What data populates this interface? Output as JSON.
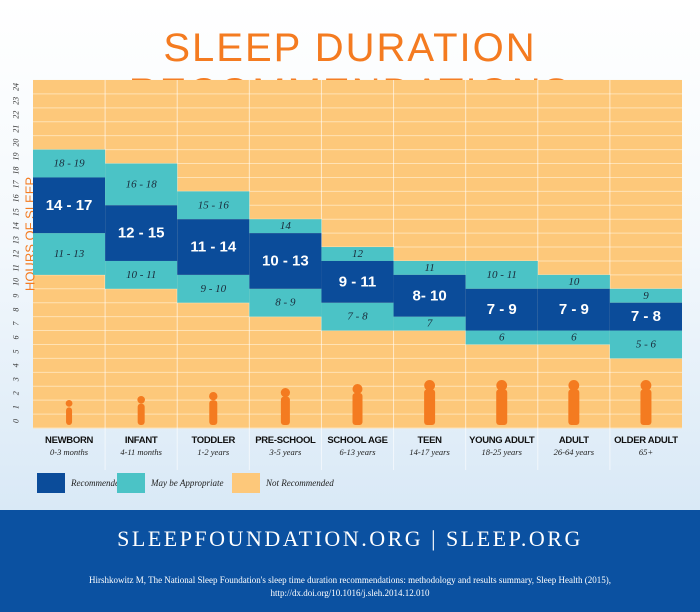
{
  "title": "SLEEP DURATION RECOMMENDATIONS",
  "chart_data": {
    "type": "bar",
    "ylabel": "HOURS OF SLEEP",
    "ylim": [
      0,
      24
    ],
    "yticks": [
      0,
      1,
      2,
      3,
      4,
      5,
      6,
      7,
      8,
      9,
      10,
      11,
      12,
      13,
      14,
      15,
      16,
      17,
      18,
      19,
      20,
      21,
      22,
      23,
      24
    ],
    "background_category": "Not Recommended",
    "categories": [
      {
        "name": "NEWBORN",
        "age": "0-3 months",
        "recommended": [
          14,
          17
        ],
        "rec_label": "14 - 17",
        "appropriate": [
          {
            "range": [
              11,
              13
            ],
            "label": "11 - 13"
          },
          {
            "range": [
              18,
              19
            ],
            "label": "18 - 19"
          }
        ]
      },
      {
        "name": "INFANT",
        "age": "4-11 months",
        "recommended": [
          12,
          15
        ],
        "rec_label": "12 - 15",
        "appropriate": [
          {
            "range": [
              10,
              11
            ],
            "label": "10 - 11"
          },
          {
            "range": [
              16,
              18
            ],
            "label": "16 - 18"
          }
        ]
      },
      {
        "name": "TODDLER",
        "age": "1-2 years",
        "recommended": [
          11,
          14
        ],
        "rec_label": "11 - 14",
        "appropriate": [
          {
            "range": [
              9,
              10
            ],
            "label": "9 - 10"
          },
          {
            "range": [
              15,
              16
            ],
            "label": "15 - 16"
          }
        ]
      },
      {
        "name": "PRE-SCHOOL",
        "age": "3-5 years",
        "recommended": [
          10,
          13
        ],
        "rec_label": "10 - 13",
        "appropriate": [
          {
            "range": [
              8,
              9
            ],
            "label": "8 - 9"
          },
          {
            "range": [
              14,
              14
            ],
            "label": "14"
          }
        ]
      },
      {
        "name": "SCHOOL AGE",
        "age": "6-13 years",
        "recommended": [
          9,
          11
        ],
        "rec_label": "9 - 11",
        "appropriate": [
          {
            "range": [
              7,
              8
            ],
            "label": "7 - 8"
          },
          {
            "range": [
              12,
              12
            ],
            "label": "12"
          }
        ]
      },
      {
        "name": "TEEN",
        "age": "14-17 years",
        "recommended": [
          8,
          10
        ],
        "rec_label": "8- 10",
        "appropriate": [
          {
            "range": [
              7,
              7
            ],
            "label": "7"
          },
          {
            "range": [
              11,
              11
            ],
            "label": "11"
          }
        ]
      },
      {
        "name": "YOUNG ADULT",
        "age": "18-25 years",
        "recommended": [
          7,
          9
        ],
        "rec_label": "7 - 9",
        "appropriate": [
          {
            "range": [
              6,
              6
            ],
            "label": "6"
          },
          {
            "range": [
              10,
              11
            ],
            "label": "10 - 11"
          }
        ]
      },
      {
        "name": "ADULT",
        "age": "26-64 years",
        "recommended": [
          7,
          9
        ],
        "rec_label": "7 - 9",
        "appropriate": [
          {
            "range": [
              6,
              6
            ],
            "label": "6"
          },
          {
            "range": [
              10,
              10
            ],
            "label": "10"
          }
        ]
      },
      {
        "name": "OLDER ADULT",
        "age": "65+",
        "recommended": [
          7,
          8
        ],
        "rec_label": "7 - 8",
        "appropriate": [
          {
            "range": [
              5,
              6
            ],
            "label": "5 - 6"
          },
          {
            "range": [
              9,
              9
            ],
            "label": "9"
          }
        ]
      }
    ],
    "legend": [
      {
        "label": "Recommended",
        "color": "#0B4C9A"
      },
      {
        "label": "May be Appropriate",
        "color": "#4BC3C6"
      },
      {
        "label": "Not Recommended",
        "color": "#FDC87A"
      }
    ],
    "legend_position": "bottom-left"
  },
  "colors": {
    "title": "#F47B20",
    "silhouette": "#F47B20",
    "footer": "#0B51A1"
  },
  "footer": {
    "sites": "SLEEPFOUNDATION.ORG  |  SLEEP.ORG",
    "citation": "Hirshkowitz M, The National Sleep Foundation's sleep time duration recommendations: methodology and results summary, Sleep Health (2015),",
    "doi": "http://dx.doi.org/10.1016/j.sleh.2014.12.010"
  }
}
